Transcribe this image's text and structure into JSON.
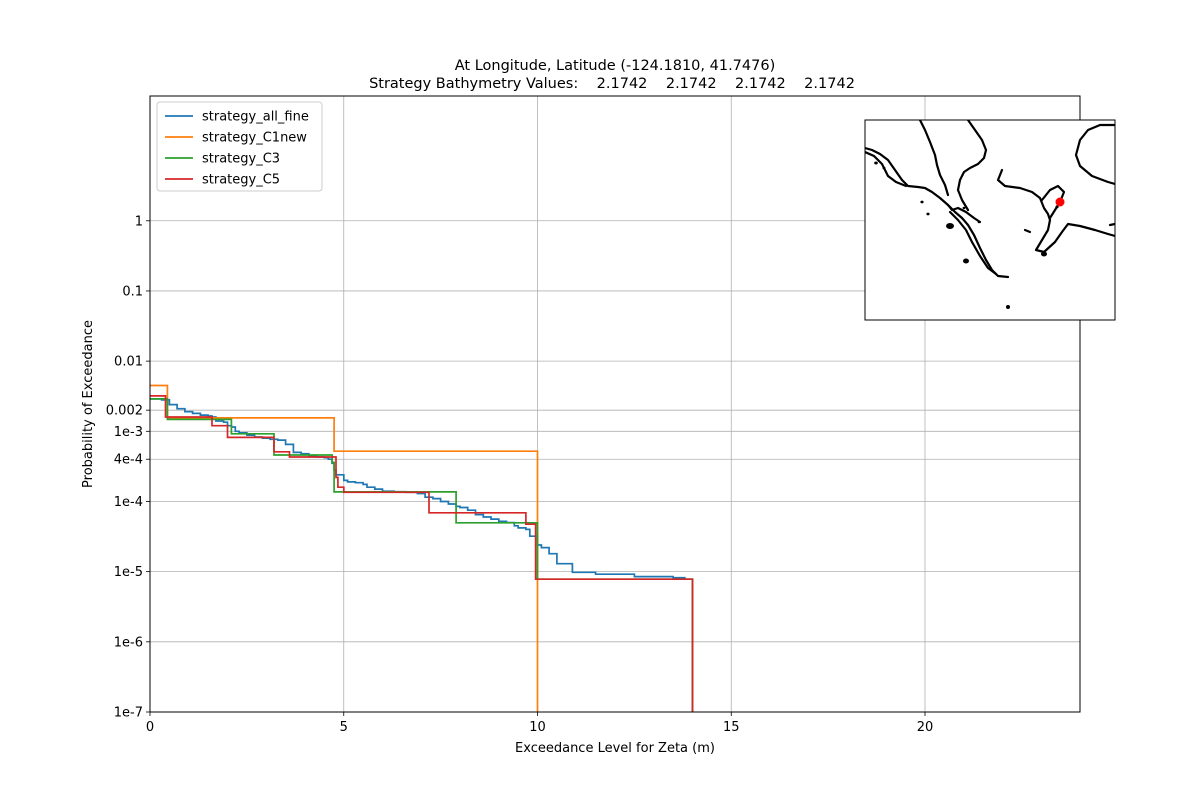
{
  "chart_data": {
    "type": "line",
    "title": "At Longitude, Latitude (-124.1810,  41.7476)",
    "subtitle": "Strategy Bathymetry Values:    2.1742    2.1742    2.1742    2.1742",
    "xlabel": "Exceedance Level for Zeta (m)",
    "ylabel": "Probability of Exceedance",
    "xlim": [
      0,
      24
    ],
    "ylim": [
      1e-07,
      60
    ],
    "yscale": "log",
    "grid": true,
    "legend_placement": "top-left",
    "x_ticks": [
      {
        "value": 0,
        "label": "0"
      },
      {
        "value": 5,
        "label": "5"
      },
      {
        "value": 10,
        "label": "10"
      },
      {
        "value": 15,
        "label": "15"
      },
      {
        "value": 20,
        "label": "20"
      }
    ],
    "y_ticks": [
      {
        "value": 1e-07,
        "label": "1e-7"
      },
      {
        "value": 1e-06,
        "label": "1e-6"
      },
      {
        "value": 1e-05,
        "label": "1e-5"
      },
      {
        "value": 0.0001,
        "label": "1e-4"
      },
      {
        "value": 0.0004,
        "label": "4e-4"
      },
      {
        "value": 0.001,
        "label": "1e-3"
      },
      {
        "value": 0.002,
        "label": "0.002"
      },
      {
        "value": 0.01,
        "label": "0.01"
      },
      {
        "value": 0.1,
        "label": "0.1"
      },
      {
        "value": 1,
        "label": "1"
      }
    ],
    "series": [
      {
        "name": "strategy_all_fine",
        "color": "#1f77b4",
        "x": [
          0,
          0.3,
          0.5,
          0.7,
          0.9,
          1.1,
          1.3,
          1.5,
          1.6,
          1.7,
          1.9,
          2.0,
          2.1,
          2.2,
          2.3,
          2.5,
          2.7,
          2.9,
          3.1,
          3.3,
          3.5,
          3.7,
          3.9,
          4.1,
          4.3,
          4.5,
          4.6,
          4.7,
          4.75,
          4.8,
          5.0,
          5.1,
          5.3,
          5.5,
          5.6,
          5.8,
          6.0,
          6.3,
          6.6,
          6.9,
          7.1,
          7.3,
          7.5,
          7.7,
          7.9,
          8.0,
          8.2,
          8.4,
          8.6,
          8.8,
          9.0,
          9.2,
          9.4,
          9.5,
          9.7,
          9.8,
          10.0,
          10.1,
          10.3,
          10.5,
          10.9,
          11.5,
          12.5,
          13.5,
          13.8,
          14.0
        ],
        "y": [
          0.0029,
          0.0028,
          0.0024,
          0.0021,
          0.0019,
          0.0018,
          0.0017,
          0.00165,
          0.0016,
          0.0014,
          0.00135,
          0.0012,
          0.00115,
          0.001,
          0.00095,
          0.00088,
          0.00083,
          0.0008,
          0.00077,
          0.00075,
          0.00065,
          0.0005,
          0.00048,
          0.00045,
          0.00043,
          0.00042,
          0.0004,
          0.00035,
          0.00028,
          0.00024,
          0.0002,
          0.00019,
          0.000185,
          0.000175,
          0.00016,
          0.00015,
          0.00014,
          0.000138,
          0.000135,
          0.00013,
          0.000115,
          0.00011,
          0.0001,
          9.2e-05,
          8.5e-05,
          8.2e-05,
          7.5e-05,
          6.5e-05,
          6e-05,
          5.6e-05,
          5.2e-05,
          5e-05,
          4.5e-05,
          4.2e-05,
          4e-05,
          3.2e-05,
          2.4e-05,
          2.2e-05,
          1.8e-05,
          1.3e-05,
          9.8e-06,
          9.2e-06,
          8.5e-06,
          8.2e-06,
          7.8e-06,
          4e-06
        ],
        "end_x": 14.0,
        "end_y": 1e-07
      },
      {
        "name": "strategy_C1new",
        "color": "#ff7f0e",
        "x": [
          0,
          0.4,
          0.45,
          2.35,
          4.75,
          10.0
        ],
        "y": [
          0.0045,
          0.0045,
          0.00155,
          0.00155,
          0.00052,
          8.88e-05
        ],
        "end_x": 10.0,
        "end_y": 1e-07
      },
      {
        "name": "strategy_C3",
        "color": "#2ca02c",
        "x": [
          0,
          0.45,
          2.1,
          3.2,
          4.7,
          4.75,
          7.9,
          9.95,
          10.0
        ],
        "y": [
          0.0029,
          0.00148,
          0.00092,
          0.00046,
          0.00036,
          0.000137,
          4.97e-05,
          4.97e-05,
          7.8e-06
        ],
        "end_x": 14.0,
        "end_y": 1e-07
      },
      {
        "name": "strategy_C5",
        "color": "#d62728",
        "x": [
          0,
          0.4,
          1.6,
          1.9,
          2.0,
          3.2,
          3.6,
          4.8,
          4.85,
          5.0,
          7.2,
          9.7,
          9.95,
          14.0
        ],
        "y": [
          0.0032,
          0.0016,
          0.0012,
          0.0012,
          0.00082,
          0.00051,
          0.00043,
          0.00022,
          0.00016,
          0.000135,
          6.9e-05,
          4.75e-05,
          7.8e-06,
          7.8e-06
        ],
        "end_x": 14.0,
        "end_y": 1e-07
      }
    ],
    "inset": {
      "marker_color": "#ff0000",
      "coast_color": "#000000"
    }
  }
}
